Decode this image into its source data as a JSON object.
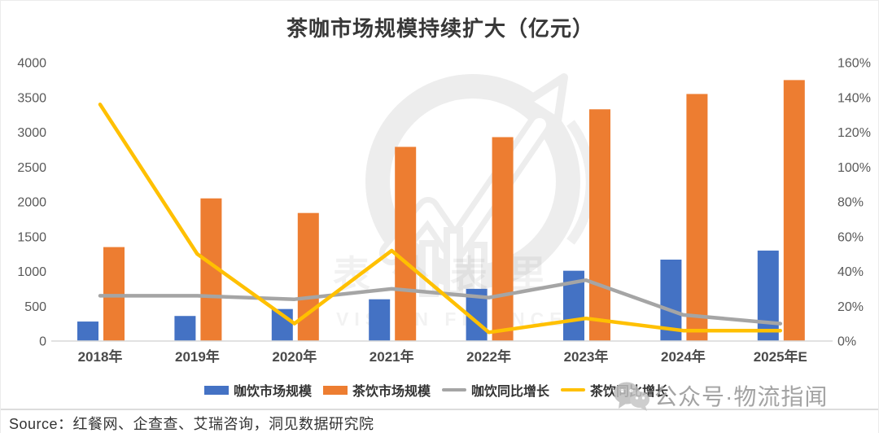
{
  "chart_data": {
    "type": "bar",
    "title": "茶咖市场规模持续扩大（亿元）",
    "categories": [
      "2018年",
      "2019年",
      "2020年",
      "2021年",
      "2022年",
      "2023年",
      "2024年",
      "2025年E"
    ],
    "series": [
      {
        "name": "咖饮市场规模",
        "type": "bar",
        "axis": "left",
        "color": "#4472C4",
        "values": [
          280,
          360,
          460,
          600,
          750,
          1010,
          1170,
          1300
        ]
      },
      {
        "name": "茶饮市场规模",
        "type": "bar",
        "axis": "left",
        "color": "#ED7D31",
        "values": [
          1350,
          2050,
          1840,
          2790,
          2930,
          3330,
          3550,
          3750
        ]
      },
      {
        "name": "咖饮同比增长",
        "type": "line",
        "axis": "right",
        "color": "#A5A5A5",
        "values": [
          26,
          26,
          24,
          30,
          25,
          35,
          15,
          10
        ]
      },
      {
        "name": "茶饮同比增长",
        "type": "line",
        "axis": "right",
        "color": "#FFC000",
        "values": [
          136,
          50,
          10,
          52,
          5,
          13,
          6,
          6
        ]
      }
    ],
    "left_axis": {
      "min": 0,
      "max": 4000,
      "step": 500,
      "suffix": ""
    },
    "right_axis": {
      "min": 0,
      "max": 160,
      "step": 20,
      "suffix": "%"
    },
    "grid": false,
    "legend_position": "bottom",
    "axis_line_color": "#d9d9d9"
  },
  "watermark": {
    "text_cn": "表外表里",
    "text_en": "VISION FINANCE"
  },
  "badge": {
    "text": "公众号·物流指闻"
  },
  "source": {
    "label": "Source：",
    "text": "红餐网、企查查、艾瑞咨询，洞见数据研究院"
  }
}
